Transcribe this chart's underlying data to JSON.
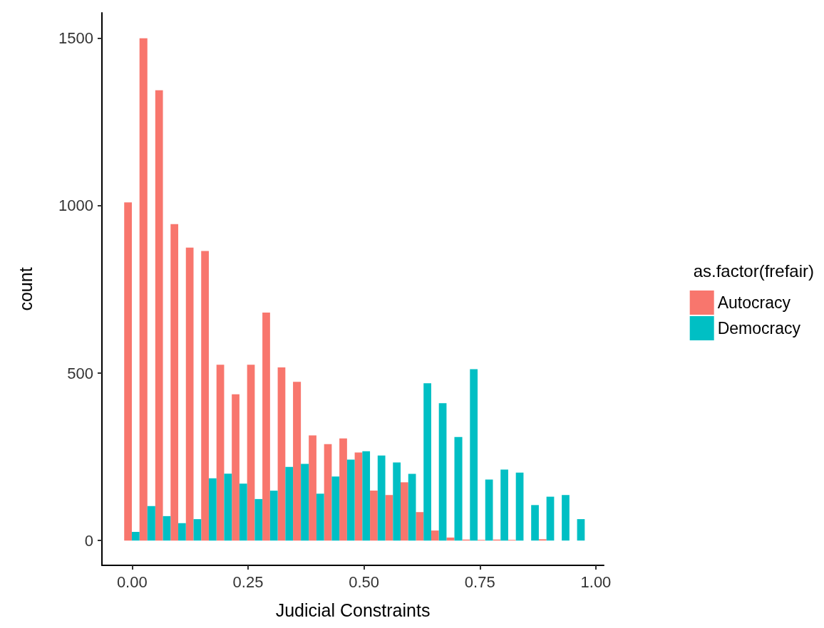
{
  "chart_data": {
    "type": "histogram",
    "xlabel": "Judicial Constraints",
    "ylabel": "count",
    "legend_title": "as.factor(frefair)",
    "legend": "right",
    "grid": false,
    "bins": [
      -0.017,
      0.016,
      0.05,
      0.083,
      0.116,
      0.149,
      0.182,
      0.215,
      0.248,
      0.281,
      0.314,
      0.347,
      0.381,
      0.414,
      0.447,
      0.48,
      0.513,
      0.546,
      0.579,
      0.612,
      0.645,
      0.678,
      0.712,
      0.745,
      0.778,
      0.811,
      0.844,
      0.877,
      0.91,
      0.943,
      0.976
    ],
    "series": [
      {
        "name": "Autocracy",
        "color": "#f8766d",
        "values": [
          1010,
          1500,
          1345,
          945,
          875,
          865,
          525,
          437,
          525,
          681,
          517,
          474,
          314,
          288,
          305,
          263,
          149,
          136,
          174,
          85,
          30,
          9,
          3,
          2,
          3,
          2,
          0,
          4,
          0,
          0
        ]
      },
      {
        "name": "Democracy",
        "color": "#00bfc4",
        "values": [
          26,
          103,
          73,
          52,
          64,
          186,
          200,
          170,
          124,
          149,
          220,
          229,
          140,
          191,
          242,
          267,
          254,
          233,
          199,
          470,
          410,
          309,
          512,
          182,
          212,
          203,
          106,
          131,
          136,
          64
        ]
      }
    ],
    "xlim": [
      -0.065,
      1.017
    ],
    "xticks": [
      {
        "value": 0,
        "label": "0.00"
      },
      {
        "value": 0.25,
        "label": "0.25"
      },
      {
        "value": 0.5,
        "label": "0.50"
      },
      {
        "value": 0.75,
        "label": "0.75"
      },
      {
        "value": 1,
        "label": "1.00"
      }
    ],
    "ylim": [
      -74,
      1576
    ],
    "yticks": [
      0,
      500,
      1000,
      1500
    ]
  }
}
